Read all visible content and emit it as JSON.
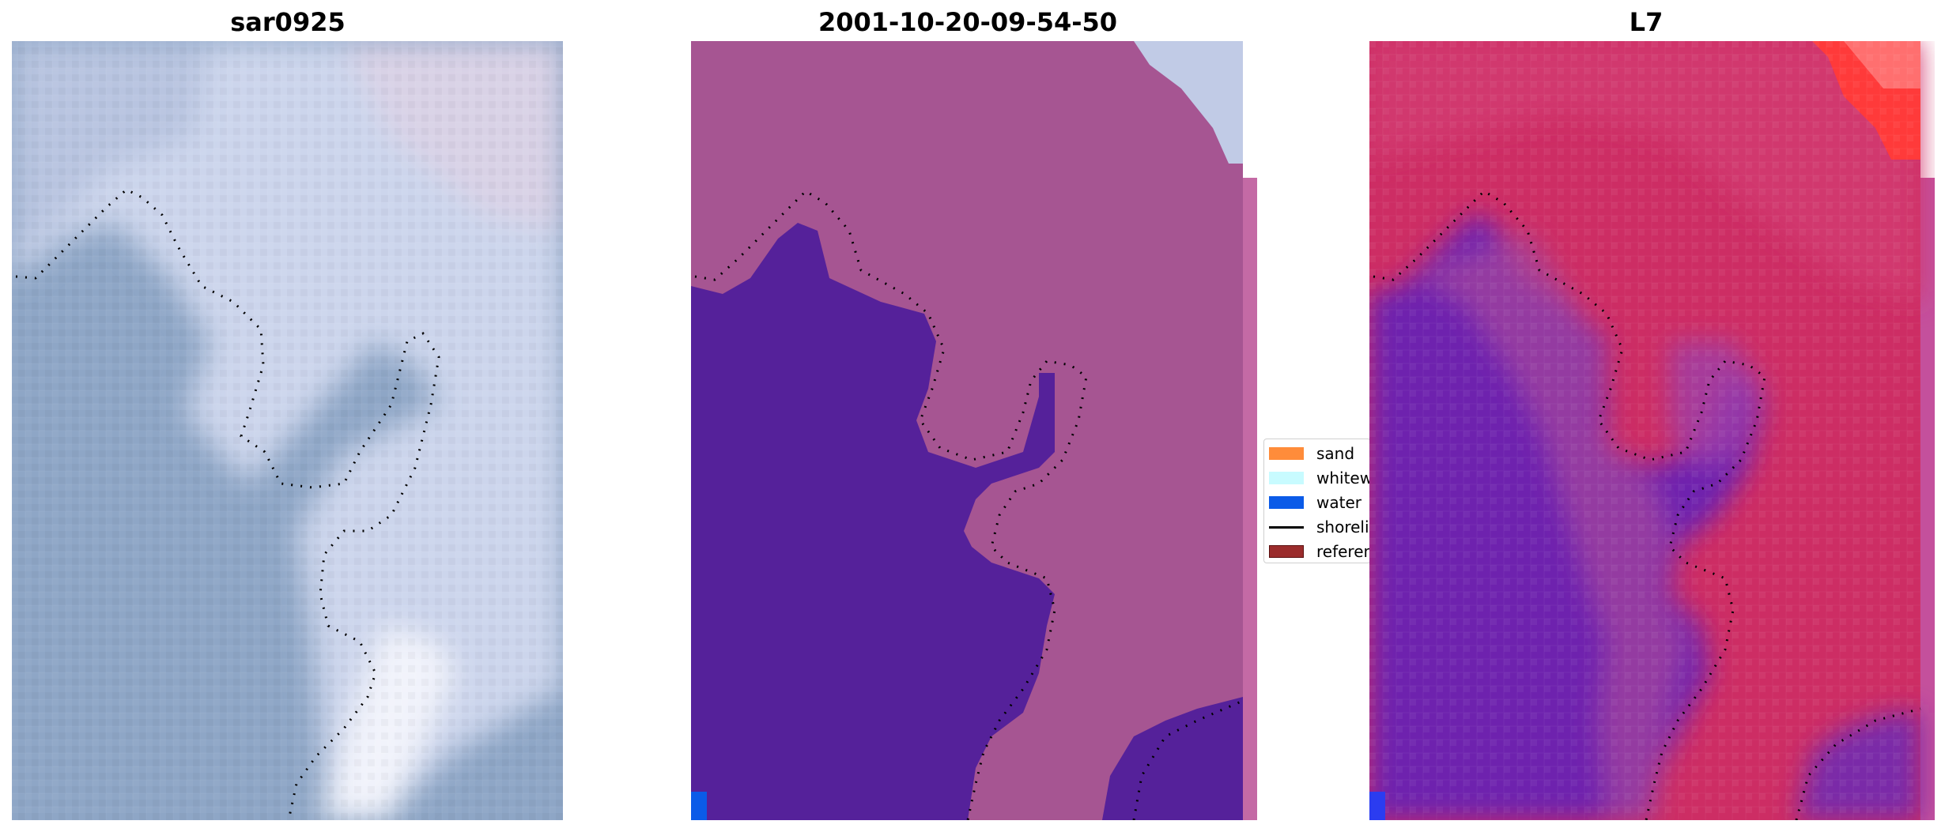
{
  "panels": [
    {
      "title": "sar0925"
    },
    {
      "title": "2001-10-20-09-54-50"
    },
    {
      "title": "L7"
    }
  ],
  "legend": {
    "items": [
      {
        "label": "sand",
        "color": "#ff8c3a"
      },
      {
        "label": "whitewater",
        "color": "#c8fbff"
      },
      {
        "label": "water",
        "color": "#0b5be8"
      },
      {
        "label": "shoreline",
        "color": "#000000"
      },
      {
        "label": "reference",
        "color": "#9b2c2c"
      }
    ]
  },
  "colors": {
    "water_class": "#55219a",
    "land_overlay": "#b15a9c",
    "rgb_water": "#8aa3c4",
    "rgb_land": "#c9d2ea",
    "mndwi_water": "#6a1fb0",
    "mndwi_land": "#d2245a",
    "corner_water_pixel": "#0b5be8"
  }
}
